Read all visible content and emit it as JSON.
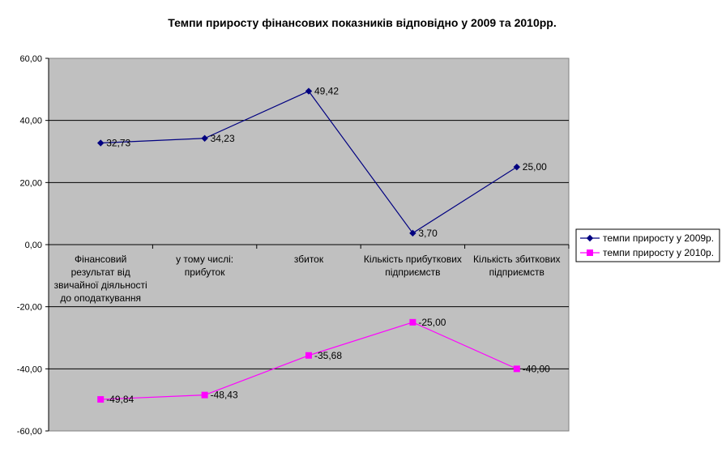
{
  "chart_data": {
    "type": "line",
    "title": "Темпи приросту фінансових показників відповідно у 2009 та 2010рр.",
    "categories": [
      [
        "Фінансовий",
        "результат від",
        "звичайної діяльності",
        "до оподаткування"
      ],
      [
        "у тому числі:",
        "прибуток"
      ],
      [
        "збиток"
      ],
      [
        "Кількість прибуткових",
        "підприємств"
      ],
      [
        "Кількість збиткових",
        "підприємств"
      ]
    ],
    "series": [
      {
        "name": "темпи приросту у 2009р.",
        "color": "#000080",
        "marker": "diamond",
        "values": [
          32.73,
          34.23,
          49.42,
          3.7,
          25.0
        ],
        "labels": [
          "32,73",
          "34,23",
          "49,42",
          "3,70",
          "25,00"
        ]
      },
      {
        "name": "темпи приросту у 2010р.",
        "color": "#ff00ff",
        "marker": "square",
        "values": [
          -49.84,
          -48.43,
          -35.68,
          -25.0,
          -40.0
        ],
        "labels": [
          "-49,84",
          "-48,43",
          "-35,68",
          "-25,00",
          "-40,00"
        ]
      }
    ],
    "yticks": [
      60,
      40,
      20,
      0,
      -20,
      -40,
      -60
    ],
    "ytick_labels": [
      "60,00",
      "40,00",
      "20,00",
      "0,00",
      "-20,00",
      "-40,00",
      "-60,00"
    ],
    "ylim": [
      -60,
      60
    ],
    "plot_background": "#c0c0c0",
    "grid": true,
    "legend_position": "right"
  }
}
